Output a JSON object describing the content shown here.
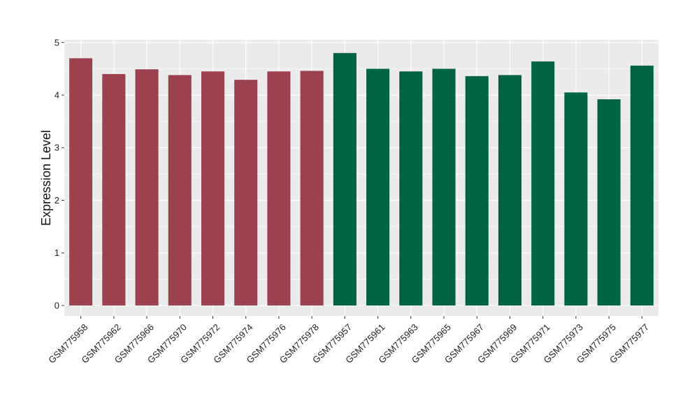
{
  "chart_data": {
    "type": "bar",
    "title": "",
    "xlabel": "",
    "ylabel": "Expression Level",
    "ylim": [
      -0.2,
      5.05
    ],
    "yticks": [
      0,
      1,
      2,
      3,
      4,
      5
    ],
    "grid": true,
    "legend": "none",
    "colors": {
      "group_a": "#9c424f",
      "group_b": "#006442",
      "panel_bg": "#ebebeb",
      "grid": "#ffffff"
    },
    "categories": [
      "GSM775958",
      "GSM775962",
      "GSM775966",
      "GSM775970",
      "GSM775972",
      "GSM775974",
      "GSM775976",
      "GSM775978",
      "GSM775957",
      "GSM775961",
      "GSM775963",
      "GSM775965",
      "GSM775967",
      "GSM775969",
      "GSM775971",
      "GSM775973",
      "GSM775975",
      "GSM775977"
    ],
    "values": [
      4.7,
      4.4,
      4.49,
      4.38,
      4.45,
      4.29,
      4.45,
      4.46,
      4.8,
      4.5,
      4.45,
      4.5,
      4.36,
      4.38,
      4.64,
      4.05,
      3.92,
      4.56
    ],
    "groups": [
      "a",
      "a",
      "a",
      "a",
      "a",
      "a",
      "a",
      "a",
      "b",
      "b",
      "b",
      "b",
      "b",
      "b",
      "b",
      "b",
      "b",
      "b"
    ]
  }
}
